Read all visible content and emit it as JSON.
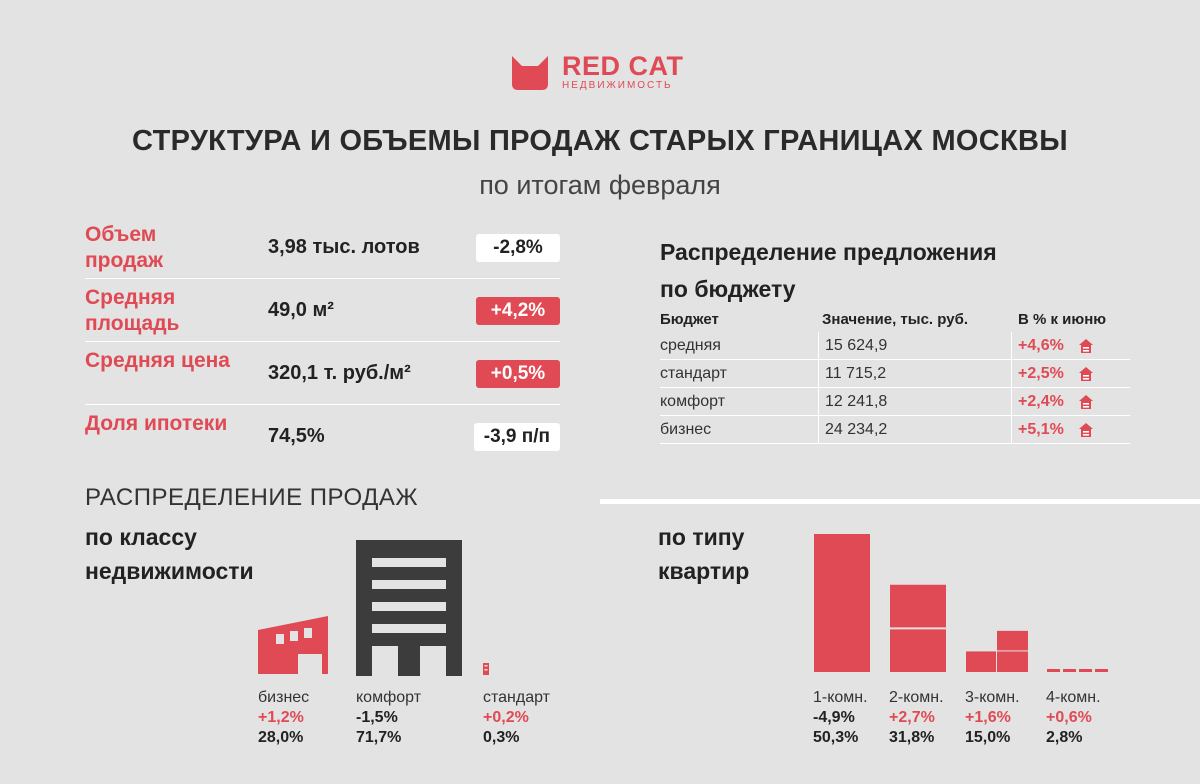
{
  "logo": {
    "name": "RED CAT",
    "sub": "НЕДВИЖИМОСТЬ",
    "icon": "cat-icon",
    "color": "#e04a54"
  },
  "header": {
    "title": "СТРУКТУРА И ОБЪЕМЫ ПРОДАЖ СТАРЫХ ГРАНИЦАХ МОСКВЫ",
    "subtitle": "по итогам февраля"
  },
  "metrics": [
    {
      "label": "Объем продаж",
      "value": "3,98 тыс. лотов",
      "change": "-2,8%",
      "style": "white"
    },
    {
      "label": "Средняя площадь",
      "value": "49,0 м²",
      "change": "+4,2%",
      "style": "red"
    },
    {
      "label": "Средняя цена",
      "value": "320,1 т. руб./м²",
      "change": "+0,5%",
      "style": "red"
    },
    {
      "label": "Доля ипотеки",
      "value": "74,5%",
      "change": "-3,9 п/п",
      "style": "white"
    }
  ],
  "budget": {
    "title_line1": "Распределение предложения",
    "title_line2": "по бюджету",
    "headers": [
      "Бюджет",
      "Значение, тыс. руб.",
      "В % к июню"
    ],
    "rows": [
      {
        "name": "средняя",
        "value": "15 624,9",
        "change": "+4,6%",
        "icon": "house-icon"
      },
      {
        "name": "стандарт",
        "value": "11 715,2",
        "change": "+2,5%",
        "icon": "house-icon"
      },
      {
        "name": "комфорт",
        "value": "12 241,8",
        "change": "+2,4%",
        "icon": "house-icon"
      },
      {
        "name": "бизнес",
        "value": "24 234,2",
        "change": "+5,1%",
        "icon": "house-icon"
      }
    ]
  },
  "sales": {
    "section_title": "РАСПРЕДЕЛЕНИЕ ПРОДАЖ",
    "by_class_line1": "по классу",
    "by_class_line2": "недвижимости",
    "classes": [
      {
        "name": "бизнес",
        "change": "+1,2%",
        "share": "28,0%",
        "value": 28.0,
        "icon": "factory-building-icon"
      },
      {
        "name": "комфорт",
        "change": "-1,5%",
        "share": "71,7%",
        "value": 71.7,
        "icon": "office-building-icon"
      },
      {
        "name": "стандарт",
        "change": "+0,2%",
        "share": "0,3%",
        "value": 0.3,
        "icon": "small-building-icon"
      }
    ],
    "by_type_line1": "по типу",
    "by_type_line2": "квартир",
    "types": [
      {
        "name": "1-комн.",
        "change": "-4,9%",
        "share": "50,3%",
        "value": 50.3
      },
      {
        "name": "2-комн.",
        "change": "+2,7%",
        "share": "31,8%",
        "value": 31.8
      },
      {
        "name": "3-комн.",
        "change": "+1,6%",
        "share": "15,0%",
        "value": 15.0
      },
      {
        "name": "4-комн.",
        "change": "+0,6%",
        "share": "2,8%",
        "value": 2.8
      }
    ]
  },
  "colors": {
    "accent": "#e04a54",
    "dark": "#3c3c3c",
    "background": "#e3e3e3"
  }
}
